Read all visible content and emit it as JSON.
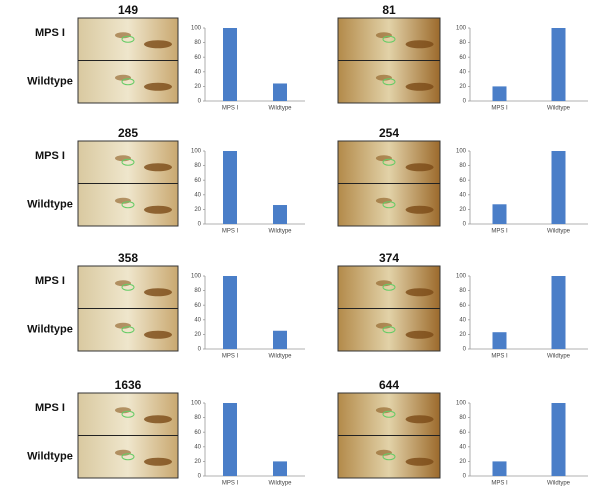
{
  "panels": [
    {
      "spot": "149",
      "rows": [
        "MPS I",
        "Wildtype"
      ]
    },
    {
      "spot": "81"
    },
    {
      "spot": "285",
      "rows": [
        "MPS I",
        "Wildtype"
      ]
    },
    {
      "spot": "254"
    },
    {
      "spot": "358",
      "rows": [
        "MPS I",
        "Wildtype"
      ]
    },
    {
      "spot": "374"
    },
    {
      "spot": "1636",
      "rows": [
        "MPS I",
        "Wildtype"
      ]
    },
    {
      "spot": "644"
    }
  ],
  "chart_data": [
    {
      "type": "bar",
      "categories": [
        "MPS I",
        "Wildtype"
      ],
      "values": [
        100,
        24
      ],
      "color": "#4a7ec8",
      "ylim": [
        0,
        100
      ],
      "yticks": [
        0,
        20,
        40,
        60,
        80,
        100
      ]
    },
    {
      "type": "bar",
      "categories": [
        "MPS I",
        "Wildtype"
      ],
      "values": [
        20,
        100
      ],
      "color": "#4a7ec8",
      "ylim": [
        0,
        100
      ],
      "yticks": [
        0,
        20,
        40,
        60,
        80,
        100
      ]
    },
    {
      "type": "bar",
      "categories": [
        "MPS I",
        "Wildtype"
      ],
      "values": [
        100,
        26
      ],
      "color": "#4a7ec8",
      "ylim": [
        0,
        100
      ],
      "yticks": [
        0,
        20,
        40,
        60,
        80,
        100
      ]
    },
    {
      "type": "bar",
      "categories": [
        "MPS I",
        "Wildtype"
      ],
      "values": [
        27,
        100
      ],
      "color": "#4a7ec8",
      "ylim": [
        0,
        100
      ],
      "yticks": [
        0,
        20,
        40,
        60,
        80,
        100
      ]
    },
    {
      "type": "bar",
      "categories": [
        "MPS I",
        "Wildtype"
      ],
      "values": [
        100,
        25
      ],
      "color": "#4a7ec8",
      "ylim": [
        0,
        100
      ],
      "yticks": [
        0,
        20,
        40,
        60,
        80,
        100
      ]
    },
    {
      "type": "bar",
      "categories": [
        "MPS I",
        "Wildtype"
      ],
      "values": [
        23,
        100
      ],
      "color": "#4a7ec8",
      "ylim": [
        0,
        100
      ],
      "yticks": [
        0,
        20,
        40,
        60,
        80,
        100
      ]
    },
    {
      "type": "bar",
      "categories": [
        "MPS I",
        "Wildtype"
      ],
      "values": [
        100,
        20
      ],
      "color": "#4a7ec8",
      "ylim": [
        0,
        100
      ],
      "yticks": [
        0,
        20,
        40,
        60,
        80,
        100
      ]
    },
    {
      "type": "bar",
      "categories": [
        "MPS I",
        "Wildtype"
      ],
      "values": [
        20,
        100
      ],
      "color": "#4a7ec8",
      "ylim": [
        0,
        100
      ],
      "yticks": [
        0,
        20,
        40,
        60,
        80,
        100
      ]
    }
  ]
}
